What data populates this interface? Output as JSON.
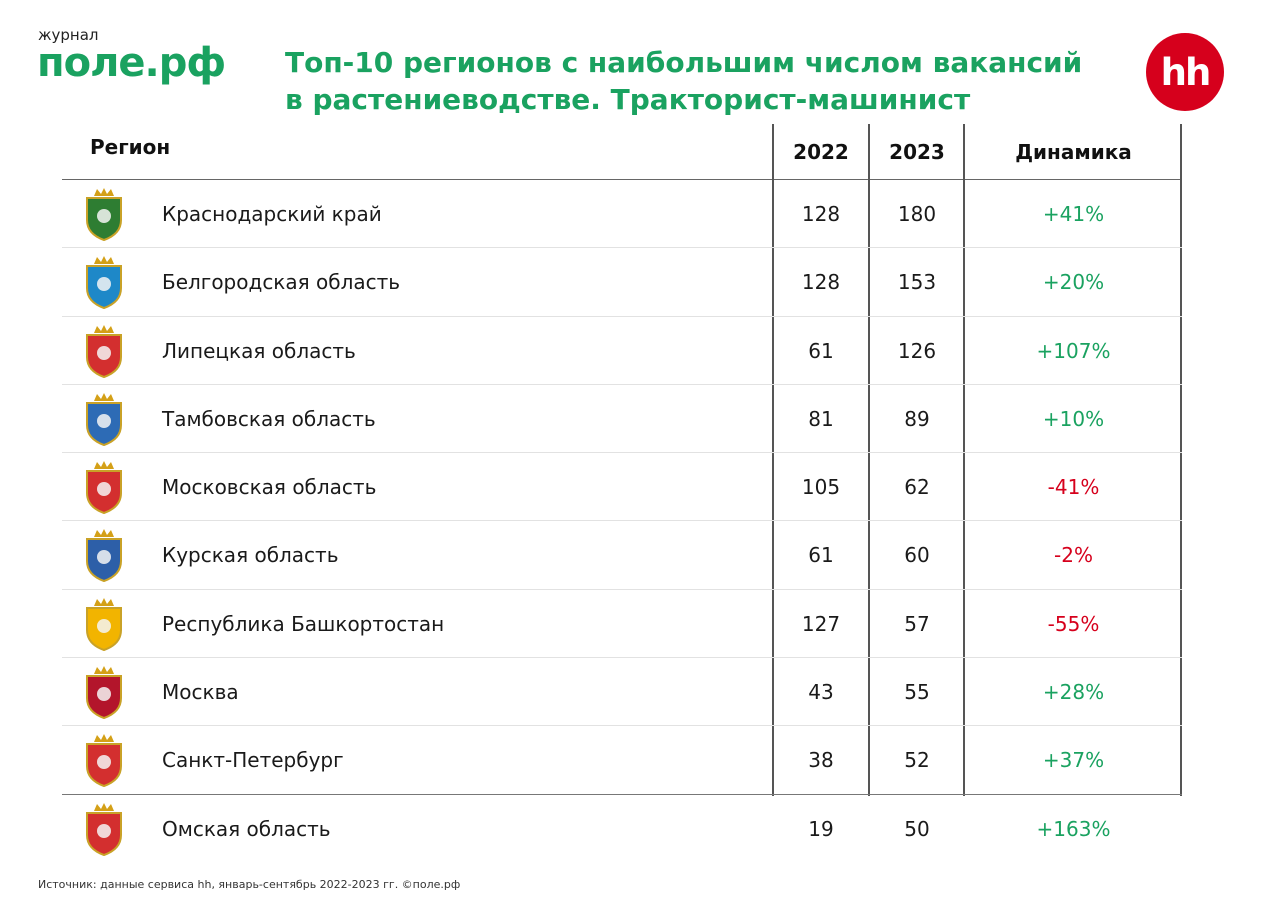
{
  "header": {
    "brand_small": "журнал",
    "brand_logo": "поле.рф",
    "title_line1": "Топ-10 регионов с наибольшим числом вакансий",
    "title_line2": "в растениеводстве. Тракторист-машинист",
    "hh_logo": "hh",
    "hh_color": "#d6001c",
    "accent_color": "#1aa260"
  },
  "columns": {
    "region": "Регион",
    "y2022": "2022",
    "y2023": "2023",
    "dynamics": "Динамика"
  },
  "chart_data": {
    "type": "table",
    "title": "Топ-10 регионов с наибольшим числом вакансий в растениеводстве. Тракторист-машинист",
    "columns": [
      "Регион",
      "2022",
      "2023",
      "Динамика"
    ],
    "rows": [
      {
        "region": "Краснодарский край",
        "y2022": "128",
        "y2023": "180",
        "dynamics": "+41%",
        "trend": "pos",
        "crest": "krasnodar-crest-icon",
        "crest_color": "#2e7d32"
      },
      {
        "region": "Белгородская область",
        "y2022": "128",
        "y2023": "153",
        "dynamics": "+20%",
        "trend": "pos",
        "crest": "belgorod-crest-icon",
        "crest_color": "#1e88c8"
      },
      {
        "region": "Липецкая область",
        "y2022": "61",
        "y2023": "126",
        "dynamics": "+107%",
        "trend": "pos",
        "crest": "lipetsk-crest-icon",
        "crest_color": "#d32f2f"
      },
      {
        "region": "Тамбовская область",
        "y2022": "81",
        "y2023": "89",
        "dynamics": "+10%",
        "trend": "pos",
        "crest": "tambov-crest-icon",
        "crest_color": "#2d6bb5"
      },
      {
        "region": "Московская область",
        "y2022": "105",
        "y2023": "62",
        "dynamics": "-41%",
        "trend": "neg",
        "crest": "moscow-oblast-crest-icon",
        "crest_color": "#d32f2f"
      },
      {
        "region": "Курская область",
        "y2022": "61",
        "y2023": "60",
        "dynamics": "-2%",
        "trend": "neg",
        "crest": "kursk-crest-icon",
        "crest_color": "#2d5fa8"
      },
      {
        "region": "Республика Башкортостан",
        "y2022": "127",
        "y2023": "57",
        "dynamics": "-55%",
        "trend": "neg",
        "crest": "bashkortostan-emblem-icon",
        "crest_color": "#f2b400"
      },
      {
        "region": "Москва",
        "y2022": "43",
        "y2023": "55",
        "dynamics": "+28%",
        "trend": "pos",
        "crest": "moscow-crest-icon",
        "crest_color": "#b3152b"
      },
      {
        "region": "Санкт-Петербург",
        "y2022": "38",
        "y2023": "52",
        "dynamics": "+37%",
        "trend": "pos",
        "crest": "saint-petersburg-crest-icon",
        "crest_color": "#d32f2f"
      },
      {
        "region": "Омская область",
        "y2022": "19",
        "y2023": "50",
        "dynamics": "+163%",
        "trend": "pos",
        "crest": "omsk-crest-icon",
        "crest_color": "#d32f2f"
      }
    ]
  },
  "footer": {
    "source": "Источник: данные сервиса hh, январь-сентябрь 2022-2023 гг. ©поле.рф"
  },
  "colors": {
    "positive": "#1aa260",
    "negative": "#d6001c"
  }
}
